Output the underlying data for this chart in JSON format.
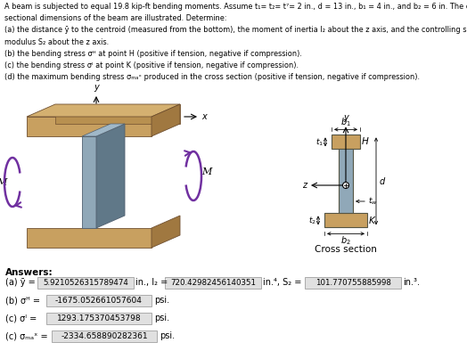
{
  "title_lines": [
    "A beam is subjected to equal 19.8 kip-ft bending moments. Assume t₁= t₂= t⁷= 2 in., d = 13 in., b₁ = 4 in., and b₂ = 6 in. The cross-",
    "sectional dimensions of the beam are illustrated. Determine:",
    "(a) the distance ȳ to the centroid (measured from the bottom), the moment of inertia I₂ about the z axis, and the controlling section",
    "modulus S₂ about the z axis.",
    "(b) the bending stress σᴴ at point H (positive if tension, negative if compression).",
    "(c) the bending stress σᴵ at point K (positive if tension, negative if compression).",
    "(d) the maximum bending stress σₘₐˣ produced in the cross section (positive if tension, negative if compression)."
  ],
  "ans_a_label": "(a) ȳ =",
  "ans_a_val1": "5.9210526315789474",
  "ans_a_unit1": "in., I₂ =",
  "ans_a_val2": "720.42982456140351",
  "ans_a_unit2": "in.⁴, S₂ =",
  "ans_a_val3": "101.770755885998",
  "ans_a_unit3": "in.³.",
  "ans_b_label": "(b) σᴴ =",
  "ans_b_val": "-1675.052661057604",
  "ans_b_unit": "psi.",
  "ans_c_label": "(c) σᴵ =",
  "ans_c_val": "1293.175370453798",
  "ans_c_unit": "psi.",
  "ans_d_label": "(c) σₘₐˣ =",
  "ans_d_val": "-2334.658890282361",
  "ans_d_unit": "psi.",
  "bg_color": "#ffffff",
  "beam_color": "#c8a060",
  "beam_top_color": "#d4b070",
  "beam_side_color": "#a07840",
  "web_color": "#90a8b8",
  "web_side_color": "#607888",
  "arrow_color": "#7030a0",
  "text_color": "#000000",
  "box_color": "#e0e0e0",
  "box_edge_color": "#aaaaaa"
}
